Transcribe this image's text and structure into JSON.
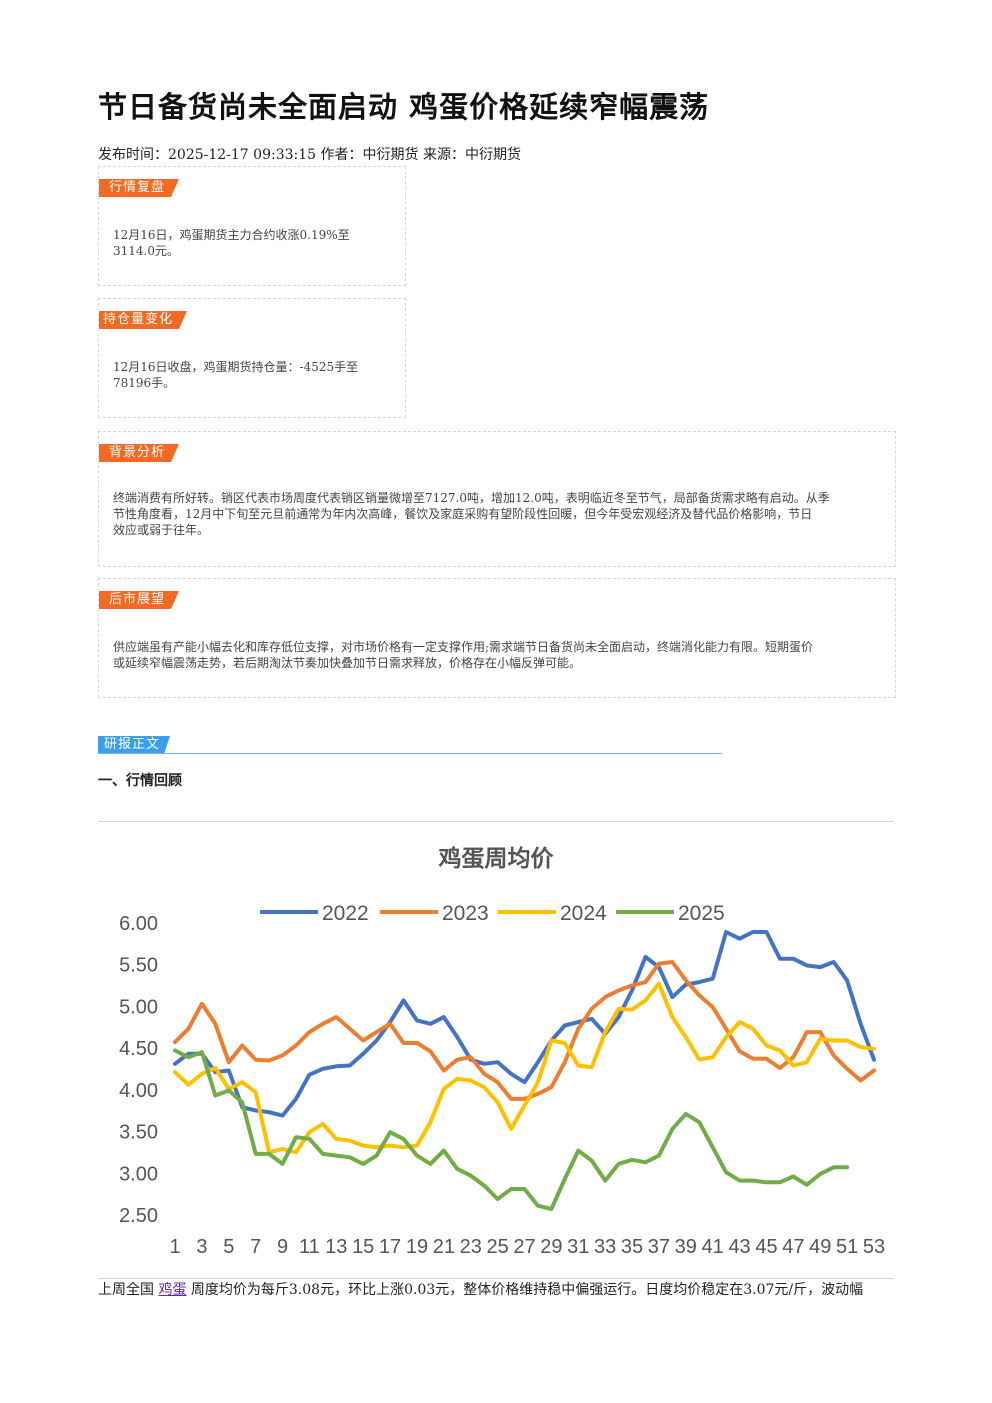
{
  "article": {
    "title": "节日备货尚未全面启动 鸡蛋价格延续窄幅震荡",
    "meta": "发布时间：2025-12-17 09:33:15 作者：中衍期货 来源：中衍期货"
  },
  "sections": {
    "market_review": {
      "tag": "行情复盘",
      "text1": "12月16日，鸡蛋期货主力合约收涨0.19%至",
      "text2": "3114.0元。"
    },
    "position_change": {
      "tag": "持仓量变化",
      "text1": "12月16日收盘，鸡蛋期货持仓量：-4525手至",
      "text2": "78196手。"
    },
    "background": {
      "tag": "背景分析",
      "text1": "终端消费有所好转。销区代表市场周度代表销区销量微增至7127.0吨，增加12.0吨，表明临近冬至节气，局部备货需求略有启动。从季",
      "text2": "节性角度看，12月中下旬至元旦前通常为年内次高峰，餐饮及家庭采购有望阶段性回暖，但今年受宏观经济及替代品价格影响，节日",
      "text3": "效应或弱于往年。"
    },
    "outlook": {
      "tag": "后市展望",
      "text1": "供应端虽有产能小幅去化和库存低位支撑，对市场价格有一定支撑作用;需求端节日备货尚未全面启动，终端消化能力有限。短期蛋价",
      "text2": "或延续窄幅震荡走势，若后期淘汰节奏加快叠加节日需求释放，价格存在小幅反弹可能。"
    }
  },
  "report": {
    "tag": "研报正文",
    "heading": "一、行情回顾"
  },
  "body": {
    "prefix": "上周全国 ",
    "link": "鸡蛋",
    "suffix": " 周度均价为每斤3.08元，环比上涨0.03元，整体价格维持稳中偏强运行。日度均价稳定在3.07元/斤，波动幅"
  },
  "chart_data": {
    "type": "line",
    "title": "鸡蛋周均价",
    "ylim": [
      2.5,
      6.0
    ],
    "yticks": [
      "6.00",
      "5.50",
      "5.00",
      "4.50",
      "4.00",
      "3.50",
      "3.00",
      "2.50"
    ],
    "xticks": [
      "1",
      "3",
      "5",
      "7",
      "9",
      "11",
      "13",
      "15",
      "17",
      "19",
      "21",
      "23",
      "25",
      "27",
      "29",
      "31",
      "33",
      "35",
      "37",
      "39",
      "41",
      "43",
      "45",
      "47",
      "49",
      "51",
      "53"
    ],
    "legend_position": "top",
    "series": [
      {
        "name": "2022",
        "color": "#4472C4",
        "values": [
          4.3,
          4.42,
          4.42,
          4.2,
          4.22,
          3.78,
          3.74,
          3.72,
          3.68,
          3.88,
          4.17,
          4.24,
          4.27,
          4.28,
          4.42,
          4.58,
          4.8,
          5.06,
          4.82,
          4.78,
          4.86,
          4.62,
          4.35,
          4.3,
          4.32,
          4.18,
          4.08,
          4.32,
          4.58,
          4.76,
          4.8,
          4.84,
          4.66,
          4.86,
          5.18,
          5.58,
          5.46,
          5.1,
          5.25,
          5.28,
          5.32,
          5.88,
          5.8,
          5.88,
          5.88,
          5.56,
          5.56,
          5.48,
          5.46,
          5.52,
          5.3,
          4.78,
          4.35
        ]
      },
      {
        "name": "2023",
        "color": "#ED7D31",
        "values": [
          4.56,
          4.72,
          5.02,
          4.78,
          4.32,
          4.52,
          4.35,
          4.34,
          4.4,
          4.52,
          4.68,
          4.78,
          4.86,
          4.72,
          4.58,
          4.68,
          4.78,
          4.55,
          4.55,
          4.45,
          4.22,
          4.35,
          4.38,
          4.18,
          4.08,
          3.88,
          3.88,
          3.94,
          4.02,
          4.32,
          4.72,
          4.96,
          5.1,
          5.18,
          5.24,
          5.28,
          5.5,
          5.52,
          5.3,
          5.12,
          4.98,
          4.72,
          4.45,
          4.36,
          4.36,
          4.25,
          4.38,
          4.68,
          4.68,
          4.4,
          4.24,
          4.1,
          4.22
        ]
      },
      {
        "name": "2024",
        "color": "#FFC000",
        "values": [
          4.2,
          4.05,
          4.18,
          4.25,
          4.0,
          4.08,
          3.96,
          3.24,
          3.28,
          3.24,
          3.48,
          3.58,
          3.4,
          3.38,
          3.32,
          3.3,
          3.32,
          3.3,
          3.32,
          3.6,
          4.0,
          4.12,
          4.1,
          4.02,
          3.84,
          3.52,
          3.8,
          4.08,
          4.58,
          4.55,
          4.28,
          4.26,
          4.68,
          4.96,
          4.95,
          5.06,
          5.26,
          4.86,
          4.62,
          4.35,
          4.38,
          4.62,
          4.8,
          4.72,
          4.52,
          4.46,
          4.28,
          4.32,
          4.6,
          4.58,
          4.58,
          4.5,
          4.48
        ]
      },
      {
        "name": "2025",
        "color": "#70AD47",
        "values": [
          4.46,
          4.38,
          4.44,
          3.92,
          3.98,
          3.84,
          3.22,
          3.22,
          3.1,
          3.42,
          3.4,
          3.22,
          3.2,
          3.18,
          3.1,
          3.2,
          3.48,
          3.4,
          3.2,
          3.1,
          3.26,
          3.04,
          2.96,
          2.84,
          2.68,
          2.8,
          2.8,
          2.6,
          2.56,
          2.92,
          3.26,
          3.14,
          2.9,
          3.1,
          3.15,
          3.12,
          3.2,
          3.52,
          3.7,
          3.6,
          3.3,
          3.0,
          2.9,
          2.9,
          2.88,
          2.88,
          2.95,
          2.85,
          2.98,
          3.06,
          3.06
        ]
      }
    ]
  }
}
